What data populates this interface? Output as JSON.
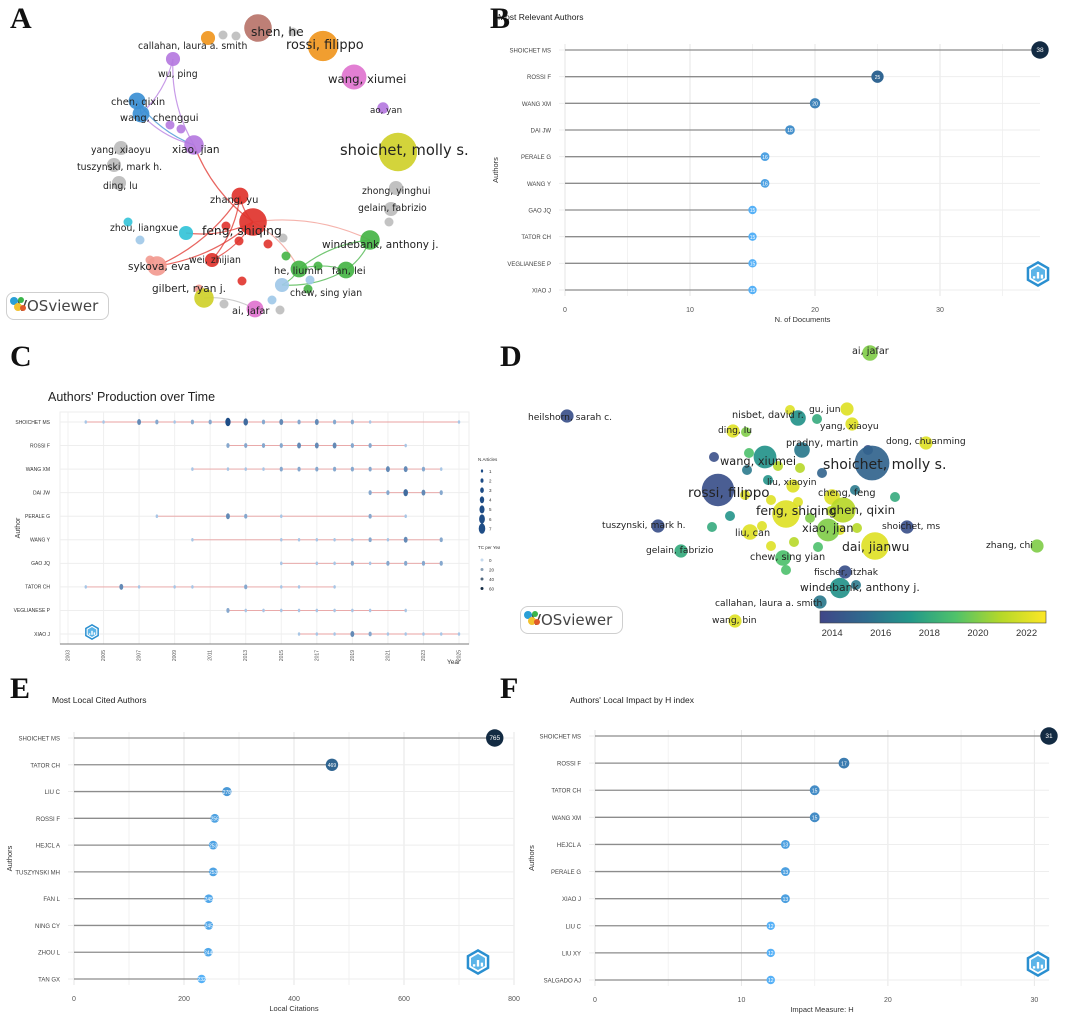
{
  "panel_labels": {
    "a": "A",
    "b": "B",
    "c": "C",
    "d": "D",
    "e": "E",
    "f": "F"
  },
  "vosviewer_label": "VOSviewer",
  "legend_c": {
    "n_articles_title": "N.Articles",
    "n_articles": [
      "1",
      "2",
      "3",
      "4",
      "5",
      "6",
      "7"
    ],
    "tc_title": "TC per Year",
    "tc_values": [
      "0",
      "20",
      "40",
      "60"
    ]
  },
  "colors": {
    "lollipop_dark": "#132b43",
    "lollipop_light": "#56b1f7",
    "stem": "#8c8c8c",
    "red": "#e0332c",
    "purple": "#b57ae0",
    "blue": "#3b8fd4",
    "green": "#45b445",
    "yellow": "#cfd02a",
    "gray": "#bcbcbc",
    "pink": "#e074cf",
    "orange": "#f0961e",
    "brown": "#b8746a",
    "cyan": "#33c3d8",
    "lightblue": "#9fc8e8",
    "salmon": "#f29a90"
  },
  "chart_data": [
    {
      "panel": "B",
      "type": "lollipop",
      "title": "Most Relevant Authors",
      "xlabel": "N. of Documents",
      "ylabel": "Authors",
      "xlim": [
        0,
        38
      ],
      "xticks": [
        "0",
        "10",
        "20",
        "30"
      ],
      "categories": [
        "SHOICHET MS",
        "ROSSI F",
        "WANG XM",
        "DAI JW",
        "PERALE G",
        "WANG Y",
        "GAO JQ",
        "TATOR CH",
        "VEGLIANESE P",
        "XIAO J"
      ],
      "values": [
        38,
        25,
        20,
        18,
        16,
        16,
        15,
        15,
        15,
        15
      ],
      "value_labels": [
        "38",
        "25",
        "20",
        "18",
        "16",
        "16",
        "15",
        "15",
        "15",
        "15"
      ]
    },
    {
      "panel": "E",
      "type": "lollipop",
      "title": "Most Local Cited Authors",
      "xlabel": "Local Citations",
      "ylabel": "Authors",
      "xlim": [
        0,
        800
      ],
      "xticks": [
        "0",
        "200",
        "400",
        "600",
        "800"
      ],
      "categories": [
        "SHOICHET MS",
        "TATOR CH",
        "LIU C",
        "ROSSI F",
        "HEJCL A",
        "TUSZYNSKI MH",
        "FAN L",
        "NING CY",
        "ZHOU L",
        "TAN GX"
      ],
      "values": [
        765,
        469,
        278,
        256,
        253,
        253,
        245,
        245,
        244,
        232
      ],
      "value_labels": [
        "765",
        "469",
        "278",
        "256",
        "253",
        "253",
        "245",
        "245",
        "244",
        "232"
      ]
    },
    {
      "panel": "F",
      "type": "lollipop",
      "title": "Authors' Local Impact by H index",
      "xlabel": "Impact Measure: H",
      "ylabel": "Authors",
      "xlim": [
        0,
        31
      ],
      "xticks": [
        "0",
        "10",
        "20",
        "30"
      ],
      "categories": [
        "SHOICHET MS",
        "ROSSI F",
        "TATOR CH",
        "WANG XM",
        "HEJCL A",
        "PERALE G",
        "XIAO J",
        "LIU C",
        "LIU XY",
        "SALGADO AJ"
      ],
      "values": [
        31,
        17,
        15,
        15,
        13,
        13,
        13,
        12,
        12,
        12
      ],
      "value_labels": [
        "31",
        "17",
        "15",
        "15",
        "13",
        "13",
        "13",
        "12",
        "12",
        "12"
      ]
    },
    {
      "panel": "C",
      "type": "scatter",
      "title": "Authors' Production over Time",
      "xlabel": "Year",
      "ylabel": "Author",
      "years": [
        "2003",
        "2005",
        "2007",
        "2009",
        "2011",
        "2013",
        "2015",
        "2017",
        "2019",
        "2021",
        "2023",
        "2025"
      ],
      "authors": [
        "SHOICHET MS",
        "ROSSI F",
        "WANG XM",
        "DAI JW",
        "PERALE G",
        "WANG Y",
        "GAO JQ",
        "TATOR CH",
        "VEGLIANESE P",
        "XIAO J"
      ],
      "series": [
        {
          "author": "SHOICHET MS",
          "start": 2004,
          "end": 2025,
          "points": [
            [
              2004,
              1
            ],
            [
              2005,
              1
            ],
            [
              2007,
              3
            ],
            [
              2008,
              2
            ],
            [
              2009,
              1
            ],
            [
              2010,
              2
            ],
            [
              2011,
              2
            ],
            [
              2012,
              5
            ],
            [
              2013,
              4
            ],
            [
              2014,
              2
            ],
            [
              2015,
              3
            ],
            [
              2016,
              2
            ],
            [
              2017,
              3
            ],
            [
              2018,
              2
            ],
            [
              2019,
              2
            ],
            [
              2020,
              1
            ],
            [
              2025,
              1
            ]
          ]
        },
        {
          "author": "ROSSI F",
          "start": 2012,
          "end": 2022,
          "points": [
            [
              2012,
              2
            ],
            [
              2013,
              2
            ],
            [
              2014,
              2
            ],
            [
              2015,
              2
            ],
            [
              2016,
              3
            ],
            [
              2017,
              3
            ],
            [
              2018,
              3
            ],
            [
              2019,
              2
            ],
            [
              2020,
              2
            ],
            [
              2022,
              1
            ]
          ]
        },
        {
          "author": "WANG XM",
          "start": 2010,
          "end": 2024,
          "points": [
            [
              2010,
              1
            ],
            [
              2012,
              1
            ],
            [
              2013,
              1
            ],
            [
              2014,
              1
            ],
            [
              2015,
              2
            ],
            [
              2016,
              2
            ],
            [
              2017,
              2
            ],
            [
              2018,
              2
            ],
            [
              2019,
              2
            ],
            [
              2020,
              2
            ],
            [
              2021,
              3
            ],
            [
              2022,
              3
            ],
            [
              2023,
              2
            ],
            [
              2024,
              1
            ]
          ]
        },
        {
          "author": "DAI JW",
          "start": 2020,
          "end": 2024,
          "points": [
            [
              2020,
              2
            ],
            [
              2021,
              2
            ],
            [
              2022,
              4
            ],
            [
              2023,
              3
            ],
            [
              2024,
              2
            ]
          ]
        },
        {
          "author": "PERALE G",
          "start": 2008,
          "end": 2022,
          "points": [
            [
              2008,
              1
            ],
            [
              2012,
              3
            ],
            [
              2013,
              2
            ],
            [
              2015,
              1
            ],
            [
              2020,
              2
            ],
            [
              2022,
              1
            ]
          ]
        },
        {
          "author": "WANG Y",
          "start": 2010,
          "end": 2024,
          "points": [
            [
              2010,
              1
            ],
            [
              2015,
              1
            ],
            [
              2016,
              1
            ],
            [
              2017,
              1
            ],
            [
              2018,
              1
            ],
            [
              2019,
              1
            ],
            [
              2020,
              2
            ],
            [
              2021,
              1
            ],
            [
              2022,
              3
            ],
            [
              2024,
              2
            ]
          ]
        },
        {
          "author": "GAO JQ",
          "start": 2015,
          "end": 2024,
          "points": [
            [
              2015,
              1
            ],
            [
              2017,
              1
            ],
            [
              2018,
              1
            ],
            [
              2019,
              2
            ],
            [
              2020,
              1
            ],
            [
              2021,
              2
            ],
            [
              2022,
              2
            ],
            [
              2023,
              2
            ],
            [
              2024,
              2
            ]
          ]
        },
        {
          "author": "TATOR CH",
          "start": 2004,
          "end": 2018,
          "points": [
            [
              2004,
              1
            ],
            [
              2006,
              3
            ],
            [
              2007,
              1
            ],
            [
              2009,
              1
            ],
            [
              2010,
              1
            ],
            [
              2013,
              2
            ],
            [
              2015,
              1
            ],
            [
              2016,
              1
            ],
            [
              2018,
              1
            ]
          ]
        },
        {
          "author": "VEGLIANESE P",
          "start": 2012,
          "end": 2022,
          "points": [
            [
              2012,
              2
            ],
            [
              2013,
              1
            ],
            [
              2014,
              1
            ],
            [
              2015,
              1
            ],
            [
              2016,
              1
            ],
            [
              2017,
              1
            ],
            [
              2018,
              1
            ],
            [
              2019,
              1
            ],
            [
              2020,
              1
            ],
            [
              2022,
              1
            ]
          ]
        },
        {
          "author": "XIAO J",
          "start": 2016,
          "end": 2025,
          "points": [
            [
              2016,
              1
            ],
            [
              2017,
              1
            ],
            [
              2018,
              1
            ],
            [
              2019,
              3
            ],
            [
              2020,
              2
            ],
            [
              2021,
              1
            ],
            [
              2022,
              1
            ],
            [
              2023,
              1
            ],
            [
              2024,
              1
            ],
            [
              2025,
              1
            ]
          ]
        }
      ]
    },
    {
      "panel": "A",
      "type": "network",
      "title": "Co-authorship network (VOSviewer)",
      "nodes": [
        {
          "label": "shen, he",
          "color": "brown",
          "size": 8
        },
        {
          "label": "rossi, filippo",
          "color": "orange",
          "size": 9
        },
        {
          "label": "callahan, laura a. smith",
          "color": "orange",
          "size": 3
        },
        {
          "label": "wu, ping",
          "color": "purple",
          "size": 3
        },
        {
          "label": "wang, xiumei",
          "color": "pink",
          "size": 7
        },
        {
          "label": "ao, yan",
          "color": "purple",
          "size": 2
        },
        {
          "label": "chen, qixin",
          "color": "blue",
          "size": 4
        },
        {
          "label": "wang, chenggui",
          "color": "blue",
          "size": 4
        },
        {
          "label": "xiao, jian",
          "color": "purple",
          "size": 5
        },
        {
          "label": "shoichet, molly s.",
          "color": "yellow",
          "size": 12
        },
        {
          "label": "yang, xiaoyu",
          "color": "gray",
          "size": 3
        },
        {
          "label": "tuszynski, mark h.",
          "color": "gray",
          "size": 3
        },
        {
          "label": "ding, lu",
          "color": "gray",
          "size": 3
        },
        {
          "label": "zhang, yu",
          "color": "red",
          "size": 4
        },
        {
          "label": "zhong, yinghui",
          "color": "gray",
          "size": 3
        },
        {
          "label": "gelain, fabrizio",
          "color": "gray",
          "size": 3
        },
        {
          "label": "zhou, liangxue",
          "color": "cyan",
          "size": 3
        },
        {
          "label": "feng, shiqing",
          "color": "red",
          "size": 8
        },
        {
          "label": "windebank, anthony j.",
          "color": "green",
          "size": 5
        },
        {
          "label": "wei, zhijian",
          "color": "red",
          "size": 3
        },
        {
          "label": "sykova, eva",
          "color": "salmon",
          "size": 5
        },
        {
          "label": "he, liumin",
          "color": "green",
          "size": 4
        },
        {
          "label": "fan, lei",
          "color": "green",
          "size": 4
        },
        {
          "label": "chew, sing yian",
          "color": "lightblue",
          "size": 3
        },
        {
          "label": "gilbert, ryan j.",
          "color": "yellow",
          "size": 5
        },
        {
          "label": "ai, jafar",
          "color": "pink",
          "size": 4
        }
      ]
    },
    {
      "panel": "D",
      "type": "network",
      "title": "Overlay visualization (VOSviewer)",
      "colorbar_ticks": [
        "2014",
        "2016",
        "2018",
        "2020",
        "2022"
      ],
      "colorbar_range": [
        2013.5,
        2022.8
      ],
      "nodes": [
        {
          "label": "ai, jafar",
          "year": 2020,
          "size": 4
        },
        {
          "label": "heilshorn, sarah c.",
          "year": 2014,
          "size": 3
        },
        {
          "label": "gu, jun",
          "year": 2022,
          "size": 3
        },
        {
          "label": "nisbet, david r.",
          "year": 2017,
          "size": 4
        },
        {
          "label": "yang, xiaoyu",
          "year": 2022,
          "size": 3
        },
        {
          "label": "ding, lu",
          "year": 2022,
          "size": 3
        },
        {
          "label": "pradny, martin",
          "year": 2016,
          "size": 4
        },
        {
          "label": "dong, chuanming",
          "year": 2022,
          "size": 3
        },
        {
          "label": "wang, xiumei",
          "year": 2017,
          "size": 7
        },
        {
          "label": "shoichet, molly s.",
          "year": 2015,
          "size": 12
        },
        {
          "label": "liu, xiaoyin",
          "year": 2022,
          "size": 3
        },
        {
          "label": "rossi, filippo",
          "year": 2014,
          "size": 11
        },
        {
          "label": "cheng, feng",
          "year": 2022,
          "size": 4
        },
        {
          "label": "feng, shiqing",
          "year": 2022,
          "size": 9
        },
        {
          "label": "chen, qixin",
          "year": 2021,
          "size": 8
        },
        {
          "label": "tuszynski, mark h.",
          "year": 2014,
          "size": 3
        },
        {
          "label": "liu, can",
          "year": 2022,
          "size": 4
        },
        {
          "label": "xiao, jian",
          "year": 2020,
          "size": 7
        },
        {
          "label": "shoichet, ms",
          "year": 2014,
          "size": 3
        },
        {
          "label": "dai, jianwu",
          "year": 2022,
          "size": 9
        },
        {
          "label": "zhang, chi",
          "year": 2020,
          "size": 3
        },
        {
          "label": "gelain, fabrizio",
          "year": 2018,
          "size": 3
        },
        {
          "label": "chew, sing yian",
          "year": 2019,
          "size": 4
        },
        {
          "label": "fischer, itzhak",
          "year": 2014,
          "size": 3
        },
        {
          "label": "windebank, anthony j.",
          "year": 2017,
          "size": 6
        },
        {
          "label": "callahan, laura a. smith",
          "year": 2016,
          "size": 3
        },
        {
          "label": "wang, bin",
          "year": 2022,
          "size": 3
        }
      ]
    }
  ]
}
